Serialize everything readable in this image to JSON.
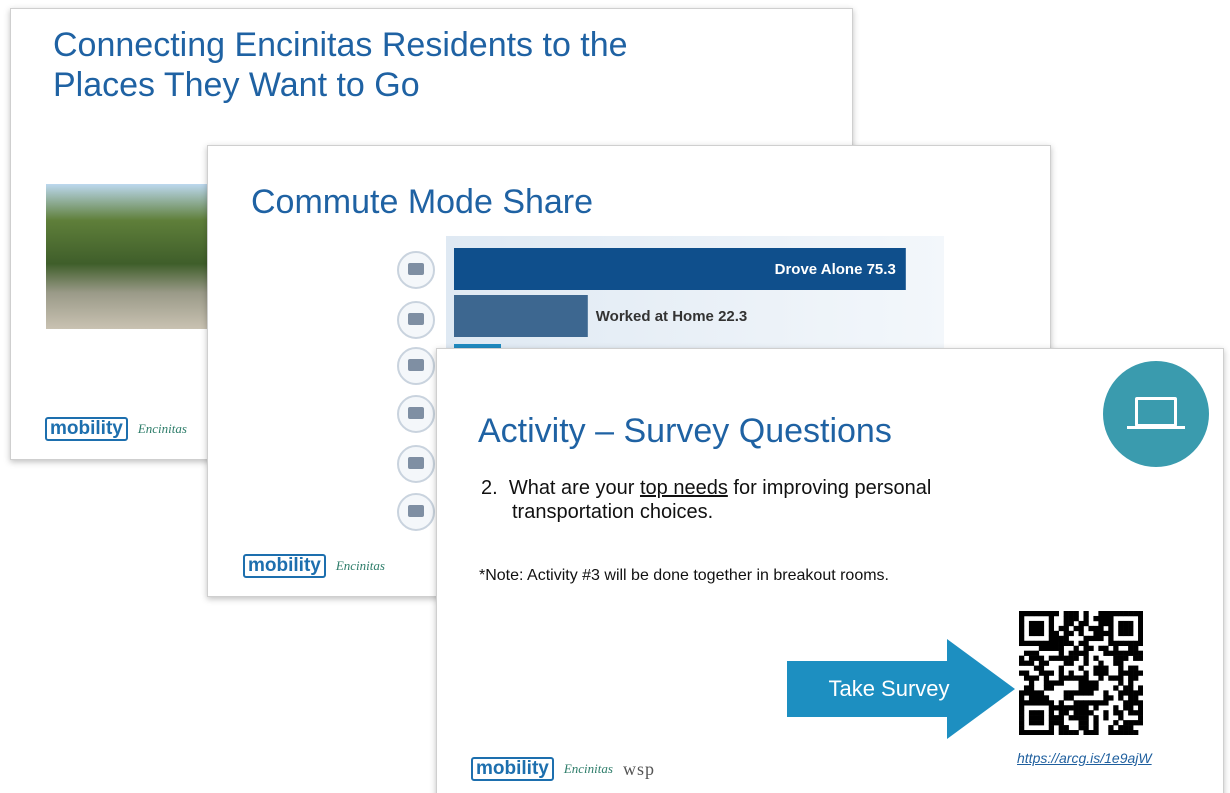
{
  "slides": [
    {
      "title_lines": [
        "Connecting Encinitas Residents to the",
        "Places They Want to Go"
      ]
    },
    {
      "title": "Commute Mode Share",
      "bars": [
        {
          "label": "Drove Alone",
          "value": 75.3
        },
        {
          "label": "Worked at Home",
          "value": 22.3
        }
      ]
    },
    {
      "title": "Activity – Survey Questions",
      "question": {
        "number": "2.",
        "before": "What are your",
        "underlined": "top needs",
        "after_line1": "for improving personal",
        "line2": "transportation choices."
      },
      "note": "*Note: Activity #3 will be done together in breakout rooms.",
      "button": "Take Survey",
      "link": "https://arcg.is/1e9ajW"
    }
  ],
  "logos": {
    "mobility": "mobility",
    "city": "Encinitas",
    "firm": "wsp"
  }
}
